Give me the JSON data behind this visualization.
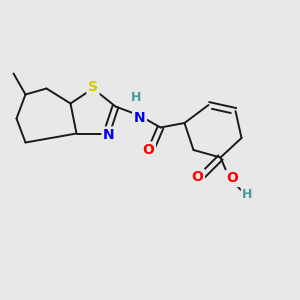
{
  "background_color": "#e8e8e8",
  "bond_color": "#1a1a1a",
  "atom_colors": {
    "S": "#cccc00",
    "N": "#0000ee",
    "O": "#ff0000",
    "H_teal": "#4a9a9a",
    "C": "#1a1a1a"
  },
  "figsize": [
    3.0,
    3.0
  ],
  "dpi": 100
}
